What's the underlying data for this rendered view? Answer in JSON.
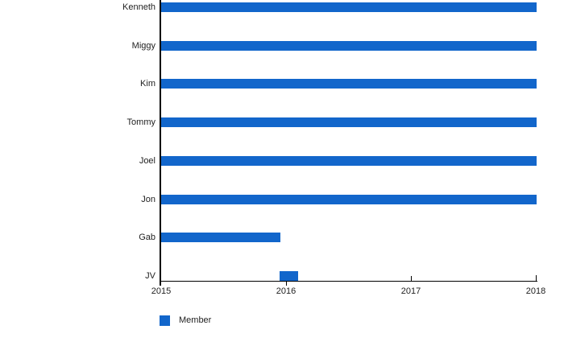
{
  "chart_data": {
    "type": "bar",
    "orientation": "horizontal",
    "title": "",
    "categories": [
      "Kenneth",
      "Miggy",
      "Kim",
      "Tommy",
      "Joel",
      "Jon",
      "Gab",
      "JV"
    ],
    "series": [
      {
        "name": "Member",
        "color": "#1266cb",
        "ranges": [
          {
            "label": "Kenneth",
            "start": 2015,
            "end": 2018
          },
          {
            "label": "Miggy",
            "start": 2015,
            "end": 2018
          },
          {
            "label": "Kim",
            "start": 2015,
            "end": 2018
          },
          {
            "label": "Tommy",
            "start": 2015,
            "end": 2018
          },
          {
            "label": "Joel",
            "start": 2015,
            "end": 2018
          },
          {
            "label": "Jon",
            "start": 2015,
            "end": 2018
          },
          {
            "label": "Gab",
            "start": 2015,
            "end": 2015.95
          },
          {
            "label": "JV",
            "start": 2015.95,
            "end": 2016.09
          }
        ]
      }
    ],
    "x_ticks": [
      "2015",
      "2016",
      "2017",
      "2018"
    ],
    "x_tick_values": [
      2015,
      2016,
      2017,
      2018
    ],
    "xlim": [
      2015,
      2018
    ],
    "grid": false,
    "legend": {
      "position": "bottom-left",
      "entries": [
        {
          "label": "Member",
          "color": "#1266cb"
        }
      ]
    }
  },
  "colors": {
    "bar": "#1266cb",
    "axis": "#000000",
    "text": "#222222",
    "background": "#ffffff"
  }
}
